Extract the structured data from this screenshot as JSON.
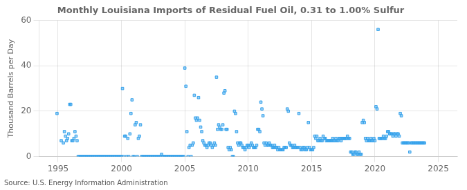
{
  "chart_data": {
    "type": "scatter",
    "title": "Monthly Louisiana Imports of Residual Fuel Oil, 0.31 to 1.00% Sulfur",
    "ylabel": "Thousand Barrels per Day",
    "annotation": "Source: U.S. Energy Information Administration",
    "marker": "square",
    "grid": true,
    "xlim": [
      1993.5,
      2026.5
    ],
    "ylim": [
      0,
      60
    ],
    "xticks": [
      1995,
      2000,
      2005,
      2010,
      2015,
      2020,
      2025
    ],
    "yticks": [
      0,
      20,
      40,
      60
    ],
    "x": [
      1994.917,
      1995.25,
      1995.417,
      1995.5,
      1995.583,
      1995.667,
      1995.75,
      1995.833,
      1995.917,
      1996.0,
      1996.083,
      1996.167,
      1996.25,
      1996.333,
      1996.417,
      1996.5,
      1996.583,
      1996.667,
      1996.75,
      1996.833,
      1996.917,
      1997.0,
      1997.083,
      1997.167,
      1997.25,
      1997.333,
      1997.417,
      1997.5,
      1997.583,
      1997.667,
      1997.75,
      1997.833,
      1997.917,
      1998.0,
      1998.083,
      1998.167,
      1998.25,
      1998.333,
      1998.417,
      1998.5,
      1998.583,
      1998.667,
      1998.75,
      1998.833,
      1998.917,
      1999.0,
      1999.083,
      1999.167,
      1999.25,
      1999.333,
      1999.417,
      1999.5,
      1999.583,
      1999.667,
      1999.75,
      1999.833,
      1999.917,
      2000.0,
      2000.083,
      2000.167,
      2000.25,
      2000.333,
      2000.417,
      2000.5,
      2000.583,
      2000.667,
      2000.75,
      2000.833,
      2000.917,
      2001.0,
      2001.083,
      2001.167,
      2001.25,
      2001.333,
      2001.417,
      2001.5,
      2001.583,
      2001.667,
      2001.75,
      2001.833,
      2001.917,
      2002.0,
      2002.083,
      2002.167,
      2002.25,
      2002.333,
      2002.417,
      2002.5,
      2002.583,
      2002.667,
      2002.75,
      2002.833,
      2002.917,
      2003.0,
      2003.083,
      2003.167,
      2003.25,
      2003.333,
      2003.417,
      2003.5,
      2003.583,
      2003.667,
      2003.75,
      2003.833,
      2003.917,
      2004.0,
      2004.083,
      2004.167,
      2004.25,
      2004.333,
      2004.417,
      2004.5,
      2004.583,
      2004.667,
      2004.75,
      2004.833,
      2004.917,
      2005.0,
      2005.083,
      2005.167,
      2005.25,
      2005.333,
      2005.417,
      2005.5,
      2005.583,
      2005.667,
      2005.75,
      2005.833,
      2005.917,
      2006.0,
      2006.083,
      2006.167,
      2006.25,
      2006.333,
      2006.417,
      2006.5,
      2006.583,
      2006.667,
      2006.75,
      2006.833,
      2006.917,
      2007.0,
      2007.083,
      2007.167,
      2007.25,
      2007.333,
      2007.417,
      2007.5,
      2007.583,
      2007.667,
      2007.75,
      2007.833,
      2007.917,
      2008.0,
      2008.083,
      2008.167,
      2008.25,
      2008.333,
      2008.417,
      2008.5,
      2008.583,
      2008.667,
      2008.75,
      2008.833,
      2008.917,
      2009.0,
      2009.083,
      2009.167,
      2009.25,
      2009.333,
      2009.417,
      2009.5,
      2009.583,
      2009.667,
      2009.75,
      2009.833,
      2009.917,
      2010.0,
      2010.083,
      2010.167,
      2010.25,
      2010.333,
      2010.417,
      2010.5,
      2010.583,
      2010.667,
      2010.75,
      2010.833,
      2010.917,
      2011.0,
      2011.083,
      2011.167,
      2011.25,
      2011.333,
      2011.417,
      2011.5,
      2011.583,
      2011.667,
      2011.75,
      2011.833,
      2011.917,
      2012.0,
      2012.083,
      2012.167,
      2012.25,
      2012.333,
      2012.417,
      2012.5,
      2012.583,
      2012.667,
      2012.75,
      2012.833,
      2012.917,
      2013.0,
      2013.083,
      2013.167,
      2013.25,
      2013.333,
      2013.417,
      2013.5,
      2013.583,
      2013.667,
      2013.75,
      2013.833,
      2013.917,
      2014.0,
      2014.083,
      2014.167,
      2014.25,
      2014.333,
      2014.417,
      2014.5,
      2014.583,
      2014.667,
      2014.75,
      2014.833,
      2014.917,
      2015.0,
      2015.083,
      2015.167,
      2015.25,
      2015.333,
      2015.417,
      2015.5,
      2015.583,
      2015.667,
      2015.75,
      2015.833,
      2015.917,
      2016.0,
      2016.083,
      2016.167,
      2016.25,
      2016.333,
      2016.417,
      2016.5,
      2016.583,
      2016.667,
      2016.75,
      2016.833,
      2016.917,
      2017.0,
      2017.083,
      2017.167,
      2017.25,
      2017.333,
      2017.417,
      2017.5,
      2017.583,
      2017.667,
      2017.75,
      2017.833,
      2017.917,
      2018.0,
      2018.083,
      2018.167,
      2018.25,
      2018.333,
      2018.417,
      2018.5,
      2018.583,
      2018.667,
      2018.75,
      2018.833,
      2018.917,
      2019.0,
      2019.083,
      2019.167,
      2019.25,
      2019.333,
      2019.417,
      2019.5,
      2019.583,
      2019.667,
      2019.75,
      2019.833,
      2019.917,
      2020.0,
      2020.083,
      2020.167,
      2020.25,
      2020.333,
      2020.417,
      2020.5,
      2020.583,
      2020.667,
      2020.75,
      2020.833,
      2020.917,
      2021.0,
      2021.083,
      2021.167,
      2021.25,
      2021.333,
      2021.417,
      2021.5,
      2021.583,
      2021.667,
      2021.75,
      2021.833,
      2021.917,
      2022.0,
      2022.083,
      2022.167,
      2022.25,
      2022.333,
      2022.417,
      2022.5,
      2022.583,
      2022.667,
      2022.75,
      2022.833,
      2022.917,
      2023.0,
      2023.083,
      2023.167,
      2023.25,
      2023.333,
      2023.417,
      2023.5,
      2023.583,
      2023.667,
      2023.75,
      2023.833,
      2023.917
    ],
    "values": [
      19.0,
      7.0,
      6.0,
      11.0,
      9.0,
      7.0,
      8.0,
      10.0,
      23.0,
      23.0,
      7.0,
      7.0,
      8.0,
      11.0,
      9.0,
      7.0,
      0.0,
      0.0,
      0.0,
      0.0,
      0.0,
      0.0,
      0.0,
      0.0,
      0.0,
      0.0,
      0.0,
      0.0,
      0.0,
      0.0,
      0.0,
      0.0,
      0.0,
      0.0,
      0.0,
      0.0,
      0.0,
      0.0,
      0.0,
      0.0,
      0.0,
      0.0,
      0.0,
      0.0,
      0.0,
      0.0,
      0.0,
      0.0,
      0.0,
      0.0,
      0.0,
      0.0,
      0.0,
      0.0,
      0.0,
      0.0,
      0.0,
      0.0,
      30.0,
      0.0,
      9.0,
      9.0,
      0.0,
      8.0,
      0.0,
      10.0,
      19.0,
      25.0,
      0.0,
      0.0,
      14.0,
      15.0,
      0.0,
      8.0,
      9.0,
      14.0,
      0.0,
      0.0,
      0.0,
      0.0,
      0.0,
      0.0,
      0.0,
      0.0,
      0.0,
      0.0,
      0.0,
      0.0,
      0.0,
      0.0,
      0.0,
      0.0,
      0.0,
      0.0,
      0.0,
      1.0,
      0.0,
      0.0,
      0.0,
      0.0,
      0.0,
      0.0,
      0.0,
      0.0,
      0.0,
      0.0,
      0.0,
      0.0,
      0.0,
      0.0,
      0.0,
      0.0,
      0.0,
      0.0,
      0.0,
      0.0,
      0.0,
      39.0,
      31.0,
      11.0,
      0.0,
      4.0,
      5.0,
      0.0,
      5.0,
      6.0,
      27.0,
      17.0,
      16.0,
      17.0,
      26.0,
      16.0,
      13.0,
      11.0,
      7.0,
      6.0,
      5.0,
      5.0,
      4.0,
      5.0,
      6.0,
      6.0,
      5.0,
      4.0,
      5.0,
      6.0,
      5.0,
      35.0,
      12.0,
      14.0,
      13.0,
      12.0,
      12.0,
      14.0,
      28.0,
      29.0,
      12.0,
      12.0,
      4.0,
      3.0,
      4.0,
      3.0,
      0.0,
      0.0,
      20.0,
      19.0,
      11.0,
      6.0,
      5.0,
      6.0,
      6.0,
      5.0,
      4.0,
      4.0,
      3.0,
      4.0,
      5.0,
      5.0,
      4.0,
      5.0,
      6.0,
      5.0,
      4.0,
      4.0,
      4.0,
      5.0,
      12.0,
      12.0,
      11.0,
      24.0,
      21.0,
      18.0,
      6.0,
      5.0,
      6.0,
      5.0,
      5.0,
      6.0,
      5.0,
      5.0,
      4.0,
      4.0,
      5.0,
      4.0,
      4.0,
      3.0,
      4.0,
      3.0,
      3.0,
      3.0,
      3.0,
      4.0,
      4.0,
      4.0,
      21.0,
      20.0,
      6.0,
      5.0,
      5.0,
      4.0,
      4.0,
      5.0,
      4.0,
      4.0,
      4.0,
      19.0,
      4.0,
      3.0,
      3.0,
      4.0,
      4.0,
      3.0,
      3.0,
      4.0,
      15.0,
      4.0,
      3.0,
      3.0,
      3.0,
      4.0,
      9.0,
      8.0,
      9.0,
      7.0,
      7.0,
      8.0,
      7.0,
      7.0,
      9.0,
      8.0,
      8.0,
      7.0,
      7.0,
      7.0,
      7.0,
      7.0,
      7.0,
      8.0,
      7.0,
      7.0,
      8.0,
      7.0,
      7.0,
      8.0,
      8.0,
      7.0,
      8.0,
      8.0,
      8.0,
      8.0,
      8.0,
      9.0,
      8.0,
      8.0,
      2.0,
      2.0,
      1.0,
      1.0,
      2.0,
      2.0,
      1.0,
      1.0,
      2.0,
      1.0,
      1.0,
      15.0,
      16.0,
      15.0,
      8.0,
      7.0,
      8.0,
      7.0,
      7.0,
      8.0,
      7.0,
      7.0,
      8.0,
      7.0,
      22.0,
      21.0,
      56.0,
      8.0,
      8.0,
      8.0,
      8.0,
      9.0,
      8.0,
      8.0,
      9.0,
      11.0,
      11.0,
      10.0,
      10.0,
      10.0,
      9.0,
      10.0,
      10.0,
      9.0,
      10.0,
      10.0,
      9.0,
      19.0,
      18.0,
      6.0,
      6.0,
      6.0,
      6.0,
      6.0,
      6.0,
      6.0,
      2.0,
      6.0,
      6.0,
      6.0,
      6.0,
      6.0,
      6.0,
      6.0,
      6.0,
      6.0,
      6.0,
      6.0,
      6.0,
      6.0,
      6.0
    ]
  }
}
